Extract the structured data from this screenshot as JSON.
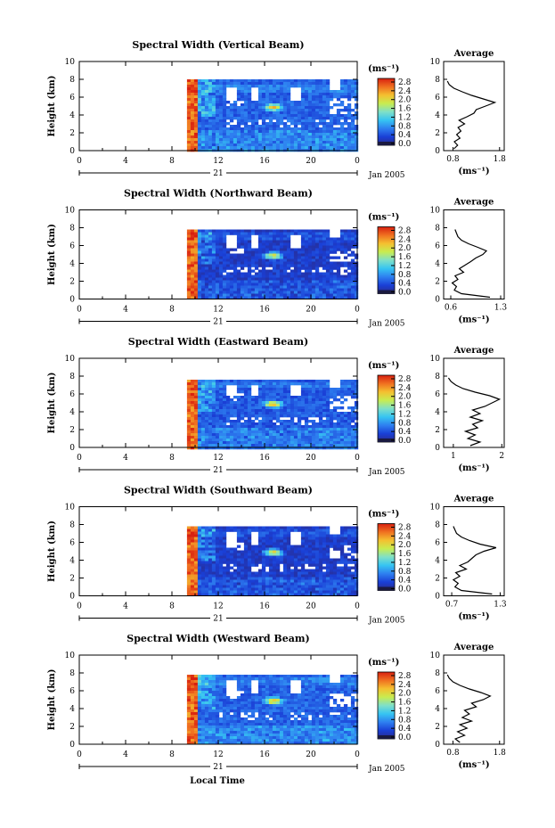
{
  "figure": {
    "xlabel": "Local Time",
    "date_label": "Jan 2005",
    "day_label": "21",
    "unit_label": "(ms⁻¹)",
    "average_title": "Average",
    "average_xlabel": "(ms⁻¹)",
    "colors": {
      "colorbar_stops": [
        "#2a2a8a",
        "#1a3fd6",
        "#2e7ff0",
        "#36c4f2",
        "#7fe0c8",
        "#c8ec50",
        "#f4c030",
        "#f07020",
        "#d82010"
      ],
      "bottom_band": "#1a1a40"
    }
  },
  "chart_data": [
    {
      "type": "heatmap",
      "title": "Spectral Width (Vertical Beam)",
      "ylabel": "Height (km)",
      "x_ticks": [
        "0",
        "4",
        "8",
        "12",
        "16",
        "20",
        "0"
      ],
      "y_ticks": [
        "0",
        "2",
        "4",
        "6",
        "8",
        "10"
      ],
      "xlim": [
        0,
        24
      ],
      "ylim": [
        0,
        10
      ],
      "data_start_hour": 9.3,
      "data_top_km": 8.0,
      "colorbar_ticks": [
        "0.0",
        "0.4",
        "0.8",
        "1.2",
        "1.6",
        "2.0",
        "2.4",
        "2.8"
      ],
      "colorbar_range": [
        0.0,
        2.8
      ],
      "base_level": 0.55,
      "profile": {
        "title": "Average",
        "x_ticks": [
          "0.8",
          "1.8"
        ],
        "xlim": [
          0.6,
          1.9
        ],
        "heights": [
          0.2,
          0.6,
          1.0,
          1.4,
          1.8,
          2.2,
          2.6,
          3.0,
          3.4,
          3.8,
          4.2,
          4.6,
          5.0,
          5.4,
          5.8,
          6.2,
          6.6,
          7.0,
          7.4,
          7.8
        ],
        "values": [
          0.82,
          0.9,
          0.83,
          0.95,
          0.88,
          0.97,
          0.91,
          1.05,
          0.93,
          1.1,
          1.25,
          1.3,
          1.5,
          1.7,
          1.45,
          1.2,
          1.0,
          0.82,
          0.72,
          0.68
        ]
      }
    },
    {
      "type": "heatmap",
      "title": "Spectral Width (Northward Beam)",
      "ylabel": "Height (km)",
      "x_ticks": [
        "0",
        "4",
        "8",
        "12",
        "16",
        "20",
        "0"
      ],
      "y_ticks": [
        "0",
        "2",
        "4",
        "6",
        "8",
        "10"
      ],
      "xlim": [
        0,
        24
      ],
      "ylim": [
        0,
        10
      ],
      "data_start_hour": 9.3,
      "data_top_km": 7.8,
      "colorbar_ticks": [
        "0.0",
        "0.4",
        "0.8",
        "1.2",
        "1.6",
        "2.0",
        "2.4",
        "2.8"
      ],
      "colorbar_range": [
        0.0,
        2.8
      ],
      "base_level": 0.3,
      "profile": {
        "title": "Average",
        "x_ticks": [
          "0.6",
          "1.3"
        ],
        "xlim": [
          0.5,
          1.35
        ],
        "heights": [
          0.2,
          0.6,
          1.0,
          1.4,
          1.8,
          2.2,
          2.6,
          3.0,
          3.4,
          3.8,
          4.2,
          4.6,
          5.0,
          5.4,
          5.8,
          6.2,
          6.6,
          7.0,
          7.4,
          7.8
        ],
        "values": [
          1.15,
          0.75,
          0.65,
          0.68,
          0.62,
          0.7,
          0.66,
          0.78,
          0.72,
          0.8,
          0.88,
          0.95,
          1.05,
          1.1,
          0.98,
          0.85,
          0.75,
          0.7,
          0.68,
          0.66
        ]
      }
    },
    {
      "type": "heatmap",
      "title": "Spectral Width (Eastward Beam)",
      "ylabel": "Height (km)",
      "x_ticks": [
        "0",
        "4",
        "8",
        "12",
        "16",
        "20",
        "0"
      ],
      "y_ticks": [
        "0",
        "2",
        "4",
        "6",
        "8",
        "10"
      ],
      "xlim": [
        0,
        24
      ],
      "ylim": [
        0,
        10
      ],
      "data_start_hour": 9.3,
      "data_top_km": 7.6,
      "colorbar_ticks": [
        "0.0",
        "0.4",
        "0.8",
        "1.2",
        "1.6",
        "2.0",
        "2.4",
        "2.8"
      ],
      "colorbar_range": [
        0.0,
        2.8
      ],
      "base_level": 0.5,
      "profile": {
        "title": "Average",
        "x_ticks": [
          "1",
          "2"
        ],
        "xlim": [
          0.8,
          2.05
        ],
        "heights": [
          0.2,
          0.6,
          1.0,
          1.4,
          1.8,
          2.2,
          2.6,
          3.0,
          3.4,
          3.8,
          4.2,
          4.6,
          5.0,
          5.4,
          5.8,
          6.2,
          6.6,
          7.0,
          7.4,
          7.8
        ],
        "values": [
          1.35,
          1.55,
          1.3,
          1.45,
          1.25,
          1.5,
          1.4,
          1.6,
          1.35,
          1.55,
          1.4,
          1.65,
          1.8,
          1.95,
          1.75,
          1.45,
          1.2,
          1.05,
          0.95,
          0.9
        ]
      }
    },
    {
      "type": "heatmap",
      "title": "Spectral Width (Southward Beam)",
      "ylabel": "Height (km)",
      "x_ticks": [
        "0",
        "4",
        "8",
        "12",
        "16",
        "20",
        "0"
      ],
      "y_ticks": [
        "0",
        "2",
        "4",
        "6",
        "8",
        "10"
      ],
      "xlim": [
        0,
        24
      ],
      "ylim": [
        0,
        10
      ],
      "data_start_hour": 9.3,
      "data_top_km": 7.8,
      "colorbar_ticks": [
        "0.0",
        "0.4",
        "0.8",
        "1.2",
        "1.6",
        "2.0",
        "2.4",
        "2.8"
      ],
      "colorbar_range": [
        0.0,
        2.8
      ],
      "base_level": 0.3,
      "profile": {
        "title": "Average",
        "x_ticks": [
          "0.7",
          "1.3"
        ],
        "xlim": [
          0.6,
          1.35
        ],
        "heights": [
          0.2,
          0.6,
          1.0,
          1.4,
          1.8,
          2.2,
          2.6,
          3.0,
          3.4,
          3.8,
          4.2,
          4.6,
          5.0,
          5.4,
          5.8,
          6.2,
          6.6,
          7.0,
          7.4,
          7.8
        ],
        "values": [
          1.2,
          0.82,
          0.74,
          0.78,
          0.72,
          0.8,
          0.75,
          0.88,
          0.8,
          0.9,
          0.95,
          1.0,
          1.1,
          1.25,
          1.05,
          0.92,
          0.82,
          0.76,
          0.74,
          0.72
        ]
      }
    },
    {
      "type": "heatmap",
      "title": "Spectral Width (Westward Beam)",
      "ylabel": "Height (km)",
      "x_ticks": [
        "0",
        "4",
        "8",
        "12",
        "16",
        "20",
        "0"
      ],
      "y_ticks": [
        "0",
        "2",
        "4",
        "6",
        "8",
        "10"
      ],
      "xlim": [
        0,
        24
      ],
      "ylim": [
        0,
        10
      ],
      "data_start_hour": 9.3,
      "data_top_km": 7.8,
      "colorbar_ticks": [
        "0.0",
        "0.4",
        "0.8",
        "1.2",
        "1.6",
        "2.0",
        "2.4",
        "2.8"
      ],
      "colorbar_range": [
        0.0,
        2.8
      ],
      "base_level": 0.55,
      "profile": {
        "title": "Average",
        "x_ticks": [
          "0.8",
          "1.8"
        ],
        "xlim": [
          0.6,
          1.9
        ],
        "heights": [
          0.2,
          0.6,
          1.0,
          1.4,
          1.8,
          2.2,
          2.6,
          3.0,
          3.4,
          3.8,
          4.2,
          4.6,
          5.0,
          5.4,
          5.8,
          6.2,
          6.6,
          7.0,
          7.4,
          7.8
        ],
        "values": [
          0.95,
          0.85,
          1.05,
          0.9,
          1.1,
          0.95,
          1.2,
          1.0,
          1.15,
          1.05,
          1.3,
          1.2,
          1.45,
          1.6,
          1.4,
          1.15,
          0.95,
          0.8,
          0.72,
          0.68
        ]
      }
    }
  ]
}
